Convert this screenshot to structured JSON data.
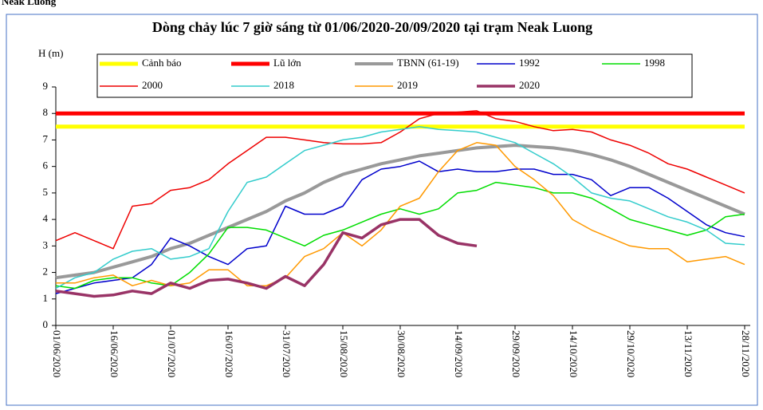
{
  "page_label": "Neak Luong",
  "chart_data": {
    "type": "line",
    "title": "Dòng chảy lúc 7 giờ sáng từ 01/06/2020-20/09/2020 tại trạm Neak Luong",
    "y_label": "H (m)",
    "x": [
      "01/06/2020",
      "06/06/2020",
      "11/06/2020",
      "16/06/2020",
      "21/06/2020",
      "26/06/2020",
      "01/07/2020",
      "06/07/2020",
      "11/07/2020",
      "16/07/2020",
      "21/07/2020",
      "26/07/2020",
      "31/07/2020",
      "05/08/2020",
      "10/08/2020",
      "15/08/2020",
      "20/08/2020",
      "25/08/2020",
      "30/08/2020",
      "04/09/2020",
      "09/09/2020",
      "14/09/2020",
      "19/09/2020",
      "24/09/2020",
      "29/09/2020",
      "04/10/2020",
      "09/10/2020",
      "14/10/2020",
      "19/10/2020",
      "24/10/2020",
      "29/10/2020",
      "03/11/2020",
      "08/11/2020",
      "13/11/2020",
      "18/11/2020",
      "23/11/2020",
      "28/11/2020"
    ],
    "xlim": [
      "01/06/2020",
      "28/11/2020"
    ],
    "xticks": [
      "01/06/2020",
      "16/06/2020",
      "01/07/2020",
      "16/07/2020",
      "31/07/2020",
      "15/08/2020",
      "30/08/2020",
      "14/09/2020",
      "29/09/2020",
      "14/10/2020",
      "29/10/2020",
      "13/11/2020",
      "28/11/2020"
    ],
    "ylim": [
      0,
      9
    ],
    "yticks": [
      0,
      1,
      2,
      3,
      4,
      5,
      6,
      7,
      8,
      9
    ],
    "series": [
      {
        "name": "Cảnh báo",
        "color": "#ffff00",
        "line_width": 5,
        "values": [
          7.5,
          7.5,
          7.5,
          7.5,
          7.5,
          7.5,
          7.5,
          7.5,
          7.5,
          7.5,
          7.5,
          7.5,
          7.5,
          7.5,
          7.5,
          7.5,
          7.5,
          7.5,
          7.5,
          7.5,
          7.5,
          7.5,
          7.5,
          7.5,
          7.5,
          7.5,
          7.5,
          7.5,
          7.5,
          7.5,
          7.5,
          7.5,
          7.5,
          7.5,
          7.5,
          7.5,
          7.5
        ]
      },
      {
        "name": "Lũ lớn",
        "color": "#ff0000",
        "line_width": 5,
        "values": [
          8,
          8,
          8,
          8,
          8,
          8,
          8,
          8,
          8,
          8,
          8,
          8,
          8,
          8,
          8,
          8,
          8,
          8,
          8,
          8,
          8,
          8,
          8,
          8,
          8,
          8,
          8,
          8,
          8,
          8,
          8,
          8,
          8,
          8,
          8,
          8,
          8
        ]
      },
      {
        "name": "TBNN (61-19)",
        "color": "#999999",
        "line_width": 4,
        "values": [
          1.8,
          1.9,
          2.0,
          2.2,
          2.4,
          2.6,
          2.9,
          3.1,
          3.4,
          3.7,
          4.0,
          4.3,
          4.7,
          5.0,
          5.4,
          5.7,
          5.9,
          6.1,
          6.25,
          6.4,
          6.5,
          6.6,
          6.7,
          6.75,
          6.8,
          6.75,
          6.7,
          6.6,
          6.45,
          6.25,
          6.0,
          5.7,
          5.4,
          5.1,
          4.8,
          4.5,
          4.2
        ]
      },
      {
        "name": "1992",
        "color": "#0000cc",
        "line_width": 1.5,
        "values": [
          1.2,
          1.4,
          1.6,
          1.7,
          1.8,
          2.3,
          3.3,
          3.0,
          2.6,
          2.3,
          2.9,
          3.0,
          4.5,
          4.2,
          4.2,
          4.5,
          5.5,
          5.9,
          6.0,
          6.2,
          5.8,
          5.9,
          5.8,
          5.8,
          5.9,
          5.9,
          5.7,
          5.7,
          5.5,
          4.9,
          5.2,
          5.2,
          4.8,
          4.3,
          3.8,
          3.5,
          3.35
        ]
      },
      {
        "name": "1998",
        "color": "#00dd00",
        "line_width": 1.5,
        "values": [
          1.5,
          1.4,
          1.7,
          1.8,
          1.8,
          1.6,
          1.5,
          2.0,
          2.7,
          3.7,
          3.7,
          3.6,
          3.3,
          3.0,
          3.4,
          3.6,
          3.9,
          4.2,
          4.4,
          4.2,
          4.4,
          5.0,
          5.1,
          5.4,
          5.3,
          5.2,
          5.0,
          5.0,
          4.8,
          4.4,
          4.0,
          3.8,
          3.6,
          3.4,
          3.6,
          4.1,
          4.2
        ]
      },
      {
        "name": "2000",
        "color": "#ee0000",
        "line_width": 1.5,
        "values": [
          3.2,
          3.5,
          3.2,
          2.9,
          4.5,
          4.6,
          5.1,
          5.2,
          5.5,
          6.1,
          6.6,
          7.1,
          7.1,
          7.0,
          6.9,
          6.85,
          6.85,
          6.9,
          7.3,
          7.8,
          8.0,
          8.05,
          8.1,
          7.8,
          7.7,
          7.5,
          7.35,
          7.4,
          7.3,
          7.0,
          6.8,
          6.5,
          6.1,
          5.9,
          5.6,
          5.3,
          5.0
        ]
      },
      {
        "name": "2018",
        "color": "#33cccc",
        "line_width": 1.5,
        "values": [
          1.4,
          1.8,
          2.0,
          2.5,
          2.8,
          2.9,
          2.5,
          2.6,
          2.9,
          4.3,
          5.4,
          5.6,
          6.1,
          6.6,
          6.8,
          7.0,
          7.1,
          7.3,
          7.4,
          7.5,
          7.4,
          7.35,
          7.3,
          7.1,
          6.9,
          6.5,
          6.1,
          5.6,
          5.0,
          4.8,
          4.7,
          4.4,
          4.1,
          3.9,
          3.6,
          3.1,
          3.05
        ]
      },
      {
        "name": "2019",
        "color": "#ff9900",
        "line_width": 1.5,
        "values": [
          1.6,
          1.6,
          1.8,
          1.9,
          1.5,
          1.7,
          1.5,
          1.6,
          2.1,
          2.1,
          1.5,
          1.5,
          1.8,
          2.6,
          2.9,
          3.5,
          3.0,
          3.6,
          4.5,
          4.8,
          5.8,
          6.6,
          6.9,
          6.8,
          6.0,
          5.5,
          4.9,
          4.0,
          3.6,
          3.3,
          3.0,
          2.9,
          2.9,
          2.4,
          2.5,
          2.6,
          2.3
        ]
      },
      {
        "name": "2020",
        "color": "#993366",
        "line_width": 3.5,
        "values": [
          1.3,
          1.2,
          1.1,
          1.15,
          1.3,
          1.2,
          1.6,
          1.4,
          1.7,
          1.75,
          1.6,
          1.4,
          1.85,
          1.5,
          2.3,
          3.5,
          3.3,
          3.8,
          4.0,
          4.0,
          3.4,
          3.1,
          3.0,
          null,
          null,
          null,
          null,
          null,
          null,
          null,
          null,
          null,
          null,
          null,
          null,
          null,
          null
        ]
      }
    ]
  }
}
